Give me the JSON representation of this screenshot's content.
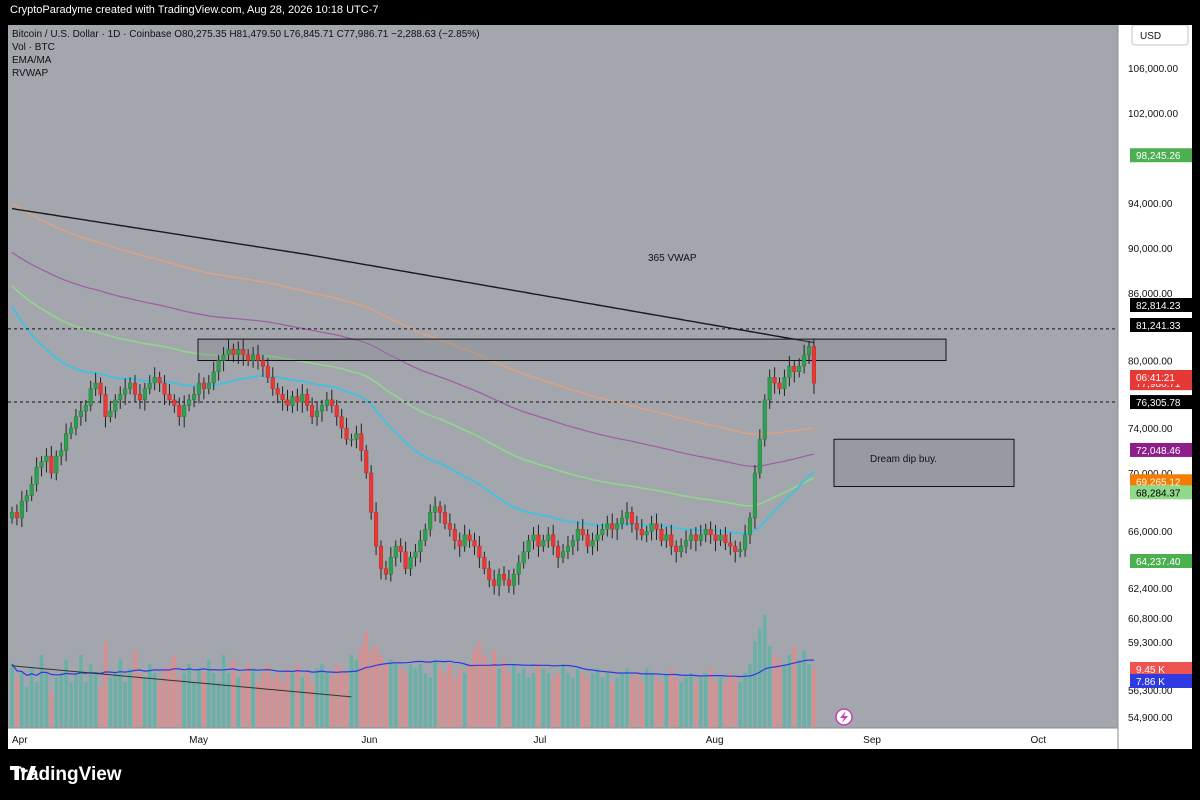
{
  "header": {
    "created_by": "CryptoParadyme created with TradingView.com, Aug 28, 2026 10:18 UTC-7"
  },
  "legend": {
    "symbol_line": "Bitcoin / U.S. Dollar · 1D · Coinbase  O80,275.35  H81,479.50  L76,845.71  C77,986.71  −2,288.63 (−2.85%)",
    "vol": "Vol · BTC",
    "ema": "EMA/MA",
    "rvwap": "RVWAP"
  },
  "currency_button": "USD",
  "annotations": {
    "vwap_label": "365 VWAP",
    "dip_label": "Dream dip buy."
  },
  "footer": {
    "brand": "TradingView"
  },
  "colors": {
    "up": "#26a69a",
    "down": "#ef5350",
    "vwap": "#1a1a1a",
    "ema_cyan": "#3fc1e0",
    "ma_green": "#8fd98a",
    "ma_orange": "#e8a07a",
    "ma_purple": "#a05aa6",
    "vol_ma_blue": "#2f3ae0",
    "vol_dark": "#333333",
    "plot_bg": "#a3a6ad"
  },
  "chart_data": {
    "type": "candlestick",
    "title": "Bitcoin / U.S. Dollar · 1D · Coinbase",
    "y_ticks": [
      "106,000.00",
      "102,000.00",
      "94,000.00",
      "90,000.00",
      "86,000.00",
      "80,000.00",
      "74,000.00",
      "70,000.00",
      "66,000.00",
      "62,400.00",
      "60,800.00",
      "59,300.00",
      "56,300.00",
      "54,900.00"
    ],
    "x_ticks": [
      "Apr",
      "May",
      "Jun",
      "Jul",
      "Aug",
      "Sep",
      "Oct"
    ],
    "price_tags": [
      {
        "label": "98,245.26",
        "price": 98245.26,
        "bg": "#4caf50",
        "fg": "#ffffff"
      },
      {
        "label": "82,814.23",
        "price": 82814.23,
        "bg": "#000000",
        "fg": "#ffffff"
      },
      {
        "label": "81,241.33",
        "price": 81241.33,
        "bg": "#000000",
        "fg": "#ffffff"
      },
      {
        "label": "77,986.71",
        "price": 77986.71,
        "bg": "#e53935",
        "fg": "#ffffff"
      },
      {
        "label": "06:41:21",
        "price": 77300,
        "bg": "#e53935",
        "fg": "#ffffff"
      },
      {
        "label": "76,305.78",
        "price": 76305.78,
        "bg": "#000000",
        "fg": "#ffffff"
      },
      {
        "label": "72,048.46",
        "price": 72048.46,
        "bg": "#8e1f8a",
        "fg": "#ffffff"
      },
      {
        "label": "69,265.12",
        "price": 69265.12,
        "bg": "#f57c00",
        "fg": "#ffffff"
      },
      {
        "label": "68,284.37",
        "price": 68284.37,
        "bg": "#8fd98a",
        "fg": "#000000"
      },
      {
        "label": "64,237.40",
        "price": 64237.4,
        "bg": "#4caf50",
        "fg": "#ffffff"
      },
      {
        "label": "9.45 K",
        "price": 57500,
        "bg": "#ef5350",
        "fg": "#ffffff"
      },
      {
        "label": "7.86 K",
        "price": 56950,
        "bg": "#2f3ae0",
        "fg": "#ffffff"
      }
    ],
    "hlines": [
      82814.23,
      76305.78
    ],
    "boxes": [
      {
        "x0": 40,
        "x1": 155,
        "p_top": 81900,
        "p_bot": 80000
      },
      {
        "x0": 136,
        "x1": 168,
        "p_top": 73000,
        "p_bot": 68800
      }
    ],
    "close": [
      66500,
      66000,
      67500,
      68000,
      69000,
      70500,
      71000,
      71500,
      70000,
      71500,
      72000,
      73500,
      74000,
      75000,
      75500,
      76000,
      77500,
      78000,
      77000,
      75000,
      75500,
      76500,
      77000,
      77500,
      78000,
      77000,
      76500,
      77500,
      78000,
      78500,
      78000,
      77000,
      76500,
      76000,
      75000,
      76000,
      76500,
      77000,
      78000,
      77500,
      78000,
      79000,
      80000,
      80500,
      81000,
      80500,
      81000,
      80500,
      80000,
      80500,
      80000,
      79500,
      78500,
      77500,
      77000,
      76500,
      76000,
      76800,
      76300,
      77000,
      76000,
      75000,
      75500,
      76000,
      76500,
      76000,
      75000,
      74000,
      73000,
      73000,
      73500,
      72000,
      70000,
      66500,
      63500,
      61500,
      61000,
      62500,
      63500,
      63000,
      61500,
      62500,
      63000,
      64000,
      65000,
      66500,
      67000,
      66500,
      65500,
      65000,
      64000,
      63500,
      64500,
      64000,
      63500,
      62500,
      61500,
      60500,
      60000,
      61000,
      60500,
      60000,
      61000,
      62000,
      63000,
      64000,
      64500,
      63500,
      64000,
      64500,
      63500,
      62500,
      63000,
      63500,
      64000,
      65000,
      64500,
      63500,
      64000,
      64500,
      65000,
      65500,
      65000,
      65500,
      66000,
      66500,
      65500,
      65000,
      64500,
      64800,
      65500,
      65000,
      64000,
      64500,
      63500,
      63000,
      63500,
      64000,
      64500,
      64000,
      64500,
      65000,
      64500,
      64000,
      64500,
      63800,
      63500,
      63000,
      63200,
      64500,
      66000,
      70000,
      73000,
      76500,
      78500,
      78000,
      77500,
      78500,
      79500,
      79000,
      79500,
      80500,
      81241,
      77987
    ],
    "volume": [
      7.0,
      5.5,
      6.0,
      4.5,
      6.5,
      5.0,
      8.0,
      6.0,
      4.0,
      5.5,
      6.0,
      7.5,
      5.0,
      6.0,
      8.0,
      5.0,
      7.0,
      6.0,
      4.5,
      9.5,
      5.5,
      6.0,
      7.5,
      5.0,
      6.5,
      8.5,
      6.0,
      5.5,
      7.0,
      6.0,
      5.0,
      6.5,
      7.0,
      8.0,
      5.5,
      6.0,
      7.0,
      5.0,
      6.5,
      6.0,
      7.5,
      6.0,
      5.0,
      8.0,
      6.0,
      7.5,
      5.5,
      6.0,
      7.0,
      6.5,
      5.0,
      6.0,
      7.0,
      5.5,
      6.0,
      5.0,
      6.5,
      6.0,
      7.0,
      5.5,
      6.0,
      5.0,
      6.5,
      7.0,
      6.0,
      5.5,
      7.0,
      6.5,
      6.0,
      8.0,
      7.5,
      9.0,
      10.5,
      8.5,
      9.0,
      8.0,
      7.0,
      7.5,
      7.0,
      6.5,
      6.0,
      7.0,
      6.5,
      7.0,
      6.0,
      5.5,
      7.5,
      6.5,
      6.0,
      7.0,
      5.5,
      6.5,
      6.0,
      7.0,
      8.5,
      9.5,
      8.0,
      7.0,
      8.5,
      6.5,
      7.5,
      6.0,
      7.0,
      6.0,
      6.5,
      5.5,
      6.0,
      7.0,
      6.5,
      6.0,
      5.5,
      6.0,
      7.0,
      6.0,
      5.5,
      6.5,
      6.0,
      5.5,
      6.0,
      6.5,
      5.5,
      6.0,
      5.0,
      5.5,
      6.0,
      6.5,
      5.5,
      6.0,
      5.0,
      6.5,
      6.0,
      5.5,
      5.0,
      6.0,
      6.5,
      5.5,
      5.0,
      5.5,
      6.0,
      5.0,
      5.5,
      6.0,
      6.5,
      5.0,
      5.5,
      5.0,
      6.0,
      5.5,
      5.0,
      6.0,
      7.0,
      9.5,
      11.0,
      12.5,
      9.0,
      8.0,
      7.5,
      7.0,
      8.0,
      9.0,
      7.5,
      8.5,
      7.0,
      6.5
    ]
  }
}
